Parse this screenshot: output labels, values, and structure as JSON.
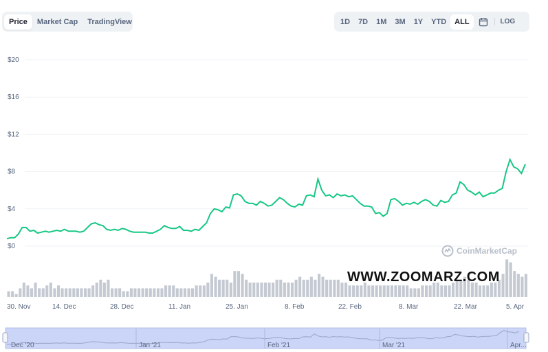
{
  "tabs": [
    {
      "label": "Price",
      "active": true
    },
    {
      "label": "Market Cap",
      "active": false
    },
    {
      "label": "TradingView",
      "active": false
    }
  ],
  "ranges": [
    {
      "label": "1D",
      "active": false
    },
    {
      "label": "7D",
      "active": false
    },
    {
      "label": "1M",
      "active": false
    },
    {
      "label": "3M",
      "active": false
    },
    {
      "label": "1Y",
      "active": false
    },
    {
      "label": "YTD",
      "active": false
    },
    {
      "label": "ALL",
      "active": true
    }
  ],
  "calendar_icon": "calendar-icon",
  "log_label": "LOG",
  "brand": {
    "name": "CoinMarketCap",
    "icon": "coinmarketcap-logo-icon"
  },
  "watermark": "WWW.ZOOMARZ.COM",
  "colors": {
    "line": "#16c784",
    "volume": "#c4c9d2",
    "navigator_fill": "#cbd5f7",
    "grid": "#eff2f5"
  },
  "chart_data": {
    "type": "line",
    "y_ticks": [
      "$20",
      "$16",
      "$12",
      "$8",
      "$4",
      "$0"
    ],
    "y_tick_values": [
      20,
      16,
      12,
      8,
      4,
      0
    ],
    "ylim": [
      0,
      20
    ],
    "x_ticks": [
      "30. Nov",
      "14. Dec",
      "28. Dec",
      "11. Jan",
      "25. Jan",
      "8. Feb",
      "22. Feb",
      "8. Mar",
      "22. Mar",
      "5. Apr"
    ],
    "navigator_labels": [
      "Dec '20",
      "Jan '21",
      "Feb '21",
      "Mar '21",
      "Apr..."
    ],
    "series": [
      {
        "values": [
          0.8,
          0.9,
          0.9,
          1.3,
          2.0,
          2.0,
          1.6,
          1.7,
          1.4,
          1.5,
          1.6,
          1.5,
          1.6,
          1.7,
          1.6,
          1.8,
          1.6,
          1.6,
          1.6,
          1.5,
          1.6,
          2.0,
          2.4,
          2.5,
          2.3,
          2.2,
          1.8,
          1.7,
          1.8,
          1.7,
          1.9,
          1.8,
          1.6,
          1.5,
          1.5,
          1.5,
          1.5,
          1.4,
          1.4,
          1.6,
          1.8,
          2.2,
          2.0,
          1.9,
          1.9,
          2.1,
          1.7,
          1.7,
          1.6,
          1.8,
          1.7,
          2.1,
          2.5,
          3.5,
          4.0,
          3.9,
          3.7,
          4.2,
          4.1,
          5.5,
          5.6,
          5.4,
          4.8,
          4.6,
          4.6,
          4.4,
          4.8,
          4.6,
          4.3,
          4.4,
          4.8,
          5.2,
          5.0,
          4.6,
          4.3,
          4.2,
          4.5,
          4.4,
          5.4,
          5.5,
          5.3,
          7.2,
          6.0,
          5.4,
          5.5,
          5.2,
          5.6,
          5.4,
          5.5,
          5.3,
          5.4,
          5.0,
          4.6,
          4.3,
          4.3,
          4.2,
          3.5,
          3.6,
          3.2,
          3.5,
          5.0,
          5.1,
          4.8,
          4.4,
          4.6,
          4.5,
          4.7,
          4.5,
          4.8,
          5.0,
          4.8,
          4.4,
          4.3,
          4.9,
          4.7,
          4.8,
          5.5,
          5.7,
          6.9,
          6.6,
          6.0,
          5.8,
          5.5,
          5.8,
          5.3,
          5.5,
          5.7,
          5.7,
          6.0,
          6.2,
          8.0,
          9.3,
          8.5,
          8.3,
          7.8,
          8.8
        ]
      }
    ],
    "volume": [
      2,
      2,
      1,
      3,
      5,
      4,
      3,
      5,
      3,
      3,
      4,
      5,
      3,
      4,
      3,
      3,
      3,
      3,
      3,
      3,
      3,
      3,
      4,
      5,
      6,
      5,
      6,
      3,
      3,
      3,
      2,
      2,
      3,
      3,
      3,
      3,
      3,
      3,
      3,
      3,
      3,
      4,
      4,
      4,
      3,
      3,
      3,
      3,
      3,
      4,
      4,
      4,
      5,
      8,
      7,
      6,
      6,
      6,
      5,
      9,
      9,
      8,
      6,
      5,
      5,
      5,
      5,
      5,
      5,
      5,
      6,
      6,
      5,
      5,
      5,
      6,
      7,
      6,
      6,
      7,
      6,
      8,
      7,
      6,
      6,
      6,
      6,
      5,
      5,
      4,
      4,
      4,
      4,
      5,
      4,
      4,
      4,
      4,
      4,
      4,
      4,
      4,
      4,
      4,
      4,
      3,
      3,
      3,
      4,
      4,
      4,
      5,
      5,
      4,
      4,
      4,
      5,
      6,
      6,
      7,
      6,
      5,
      5,
      4,
      4,
      4,
      5,
      5,
      6,
      8,
      13,
      12,
      9,
      8,
      7,
      8
    ],
    "grid": true,
    "xlabel": "",
    "ylabel": ""
  }
}
